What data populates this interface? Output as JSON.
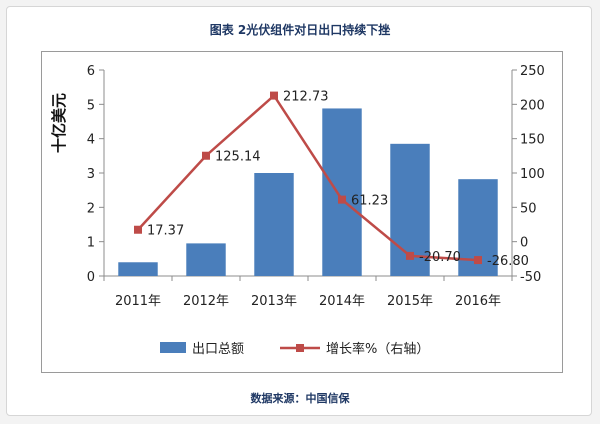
{
  "title": "图表 2光伏组件对日出口持续下挫",
  "source": "数据来源：中国信保",
  "chart_data": {
    "type": "bar+line",
    "categories": [
      "2011年",
      "2012年",
      "2013年",
      "2014年",
      "2015年",
      "2016年"
    ],
    "series": [
      {
        "name": "出口总额",
        "type": "bar",
        "axis": "left",
        "values": [
          0.4,
          0.95,
          3.0,
          4.88,
          3.85,
          2.82
        ],
        "color": "#4a7ebb"
      },
      {
        "name": "增长率%（右轴）",
        "type": "line",
        "axis": "right",
        "values": [
          17.37,
          125.14,
          212.73,
          61.23,
          -20.7,
          -26.8
        ],
        "color": "#be4b48"
      }
    ],
    "data_labels": [
      "17.37",
      "125.14",
      "212.73",
      "61.23",
      "-20.70",
      "-26.80"
    ],
    "ylabel": "十亿美元",
    "ylim": [
      0,
      6
    ],
    "y_ticks": [
      0,
      1,
      2,
      3,
      4,
      5,
      6
    ],
    "y2lim": [
      -50,
      250
    ],
    "y2_ticks": [
      -50,
      0,
      50,
      100,
      150,
      200,
      250
    ],
    "grid": false,
    "legend": "bottom"
  }
}
